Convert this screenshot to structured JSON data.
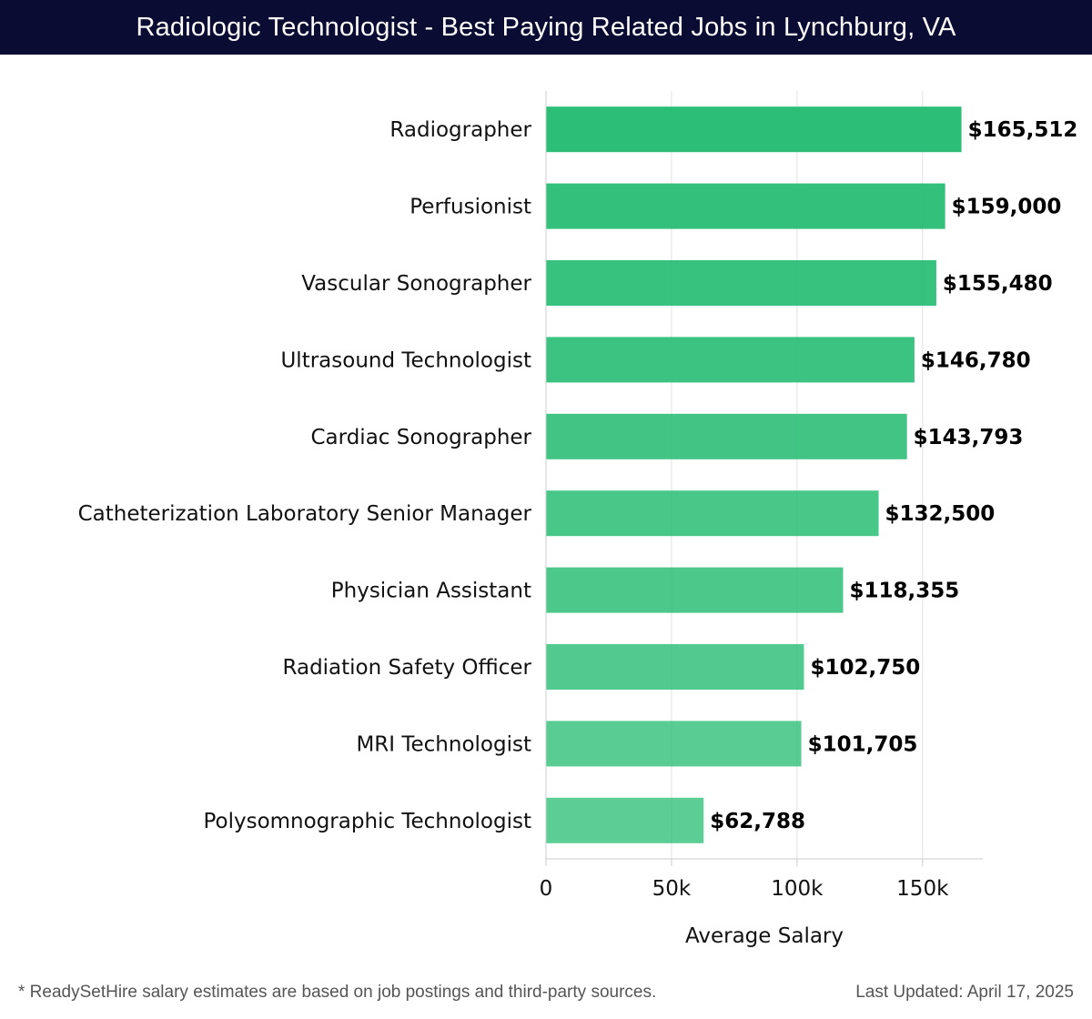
{
  "header": {
    "title": "Radiologic Technologist - Best Paying Related Jobs in Lynchburg, VA"
  },
  "chart_data": {
    "type": "bar",
    "orientation": "horizontal",
    "title": "Radiologic Technologist - Best Paying Related Jobs in Lynchburg, VA",
    "xlabel": "Average Salary",
    "ylabel": "",
    "xlim": [
      0,
      174000
    ],
    "x_ticks": [
      {
        "value": 0,
        "label": "0"
      },
      {
        "value": 50000,
        "label": "50k"
      },
      {
        "value": 100000,
        "label": "100k"
      },
      {
        "value": 150000,
        "label": "150k"
      }
    ],
    "grid": "vertical",
    "bar_color": "#21bb6f",
    "categories": [
      "Radiographer",
      "Perfusionist",
      "Vascular Sonographer",
      "Ultrasound Technologist",
      "Cardiac Sonographer",
      "Catheterization Laboratory Senior Manager",
      "Physician Assistant",
      "Radiation Safety Officer",
      "MRI Technologist",
      "Polysomnographic Technologist"
    ],
    "values": [
      165512,
      159000,
      155480,
      146780,
      143793,
      132500,
      118355,
      102750,
      101705,
      62788
    ],
    "value_labels": [
      "$165,512",
      "$159,000",
      "$155,480",
      "$146,780",
      "$143,793",
      "$132,500",
      "$118,355",
      "$102,750",
      "$101,705",
      "$62,788"
    ]
  },
  "footer": {
    "note": "* ReadySetHire salary estimates are based on job postings and third-party sources.",
    "updated": "Last Updated: April 17, 2025"
  }
}
